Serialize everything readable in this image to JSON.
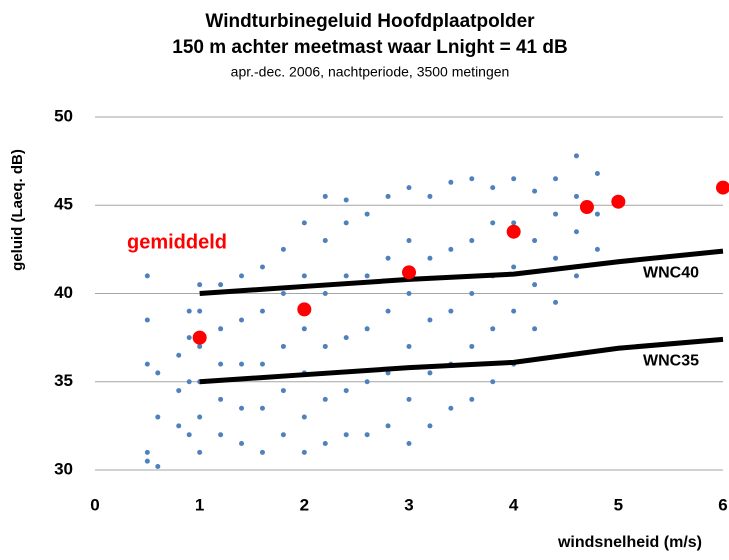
{
  "chart_data": {
    "type": "scatter",
    "title": "Windturbinegeluid Hoofdplaatpolder",
    "subtitle": "150 m achter meetmast waar Lnight = 41 dB",
    "note": "apr.-dec. 2006, nachtperiode, 3500 metingen",
    "x_label": "windsnelheid (m/s)",
    "y_label": "geluid  (Laeq. dB)",
    "xlim": [
      0,
      6
    ],
    "xticks": [
      0,
      1,
      2,
      3,
      4,
      5,
      6
    ],
    "ylim": [
      30,
      50
    ],
    "yticks": [
      30,
      35,
      40,
      45,
      50
    ],
    "grid": true,
    "annotations": [
      {
        "text": "gemiddeld",
        "color": "#ff0000"
      }
    ],
    "series": [
      {
        "mode": "markers",
        "color": "#4f81bd",
        "size": 2.5,
        "x": [
          0.5,
          0.5,
          0.5,
          0.5,
          0.5,
          0.6,
          0.6,
          0.6,
          0.8,
          0.8,
          0.8,
          0.9,
          0.9,
          0.9,
          0.9,
          1.0,
          1.0,
          1.0,
          1.0,
          1.0,
          1.0,
          1.2,
          1.2,
          1.2,
          1.2,
          1.2,
          1.4,
          1.4,
          1.4,
          1.4,
          1.4,
          1.6,
          1.6,
          1.6,
          1.6,
          1.6,
          1.8,
          1.8,
          1.8,
          1.8,
          1.8,
          2.0,
          2.0,
          2.0,
          2.0,
          2.0,
          2.0,
          2.2,
          2.2,
          2.2,
          2.2,
          2.2,
          2.2,
          2.4,
          2.4,
          2.4,
          2.4,
          2.4,
          2.4,
          2.6,
          2.6,
          2.6,
          2.6,
          2.6,
          2.8,
          2.8,
          2.8,
          2.8,
          2.8,
          3.0,
          3.0,
          3.0,
          3.0,
          3.0,
          3.0,
          3.2,
          3.2,
          3.2,
          3.2,
          3.2,
          3.4,
          3.4,
          3.4,
          3.4,
          3.4,
          3.6,
          3.6,
          3.6,
          3.6,
          3.6,
          3.8,
          3.8,
          3.8,
          3.8,
          3.8,
          4.0,
          4.0,
          4.0,
          4.0,
          4.0,
          4.2,
          4.2,
          4.2,
          4.2,
          4.4,
          4.4,
          4.4,
          4.4,
          4.6,
          4.6,
          4.6,
          4.6,
          4.8,
          4.8,
          4.8
        ],
        "values": [
          30.5,
          31,
          36,
          38.5,
          41,
          30.2,
          33,
          35.5,
          32.5,
          34.5,
          36.5,
          32,
          35,
          37.5,
          39,
          31,
          33,
          35,
          37,
          39,
          40.5,
          32,
          34,
          36,
          38,
          40.5,
          31.5,
          33.5,
          36,
          38.5,
          41,
          31,
          33.5,
          36,
          39,
          41.5,
          32,
          34.5,
          37,
          40,
          42.5,
          31,
          33,
          35.5,
          38,
          41,
          44,
          31.5,
          34,
          37,
          40,
          43,
          45.5,
          32,
          34.5,
          37.5,
          41,
          44,
          45.3,
          32,
          35,
          38,
          41,
          44.5,
          32.5,
          35.5,
          39,
          42,
          45.5,
          31.5,
          34,
          37,
          40,
          43,
          46,
          32.5,
          35.5,
          38.5,
          42,
          45.5,
          33.5,
          36,
          39,
          42.5,
          46.3,
          34,
          37,
          40,
          43,
          46.5,
          35,
          38,
          41,
          44,
          46,
          36,
          39,
          41.5,
          44,
          46.5,
          38,
          40.5,
          43,
          45.8,
          39.5,
          42,
          44.5,
          46.5,
          41,
          43.5,
          45.5,
          47.8,
          42.5,
          44.5,
          46.8
        ]
      },
      {
        "mode": "line",
        "name": "WNC40",
        "color": "#000000",
        "x": [
          1,
          2,
          3,
          4,
          5,
          6
        ],
        "values": [
          40,
          40.4,
          40.8,
          41.1,
          41.8,
          42.4
        ]
      },
      {
        "mode": "line",
        "name": "WNC35",
        "color": "#000000",
        "x": [
          1,
          2,
          3,
          4,
          5,
          6
        ],
        "values": [
          35,
          35.4,
          35.8,
          36.1,
          36.9,
          37.4
        ]
      },
      {
        "mode": "markers",
        "color": "#ff0000",
        "size": 7,
        "x": [
          1,
          2,
          3,
          4,
          4.7,
          5,
          6
        ],
        "values": [
          37.5,
          39.1,
          41.2,
          43.5,
          44.9,
          45.2,
          46
        ]
      }
    ]
  }
}
